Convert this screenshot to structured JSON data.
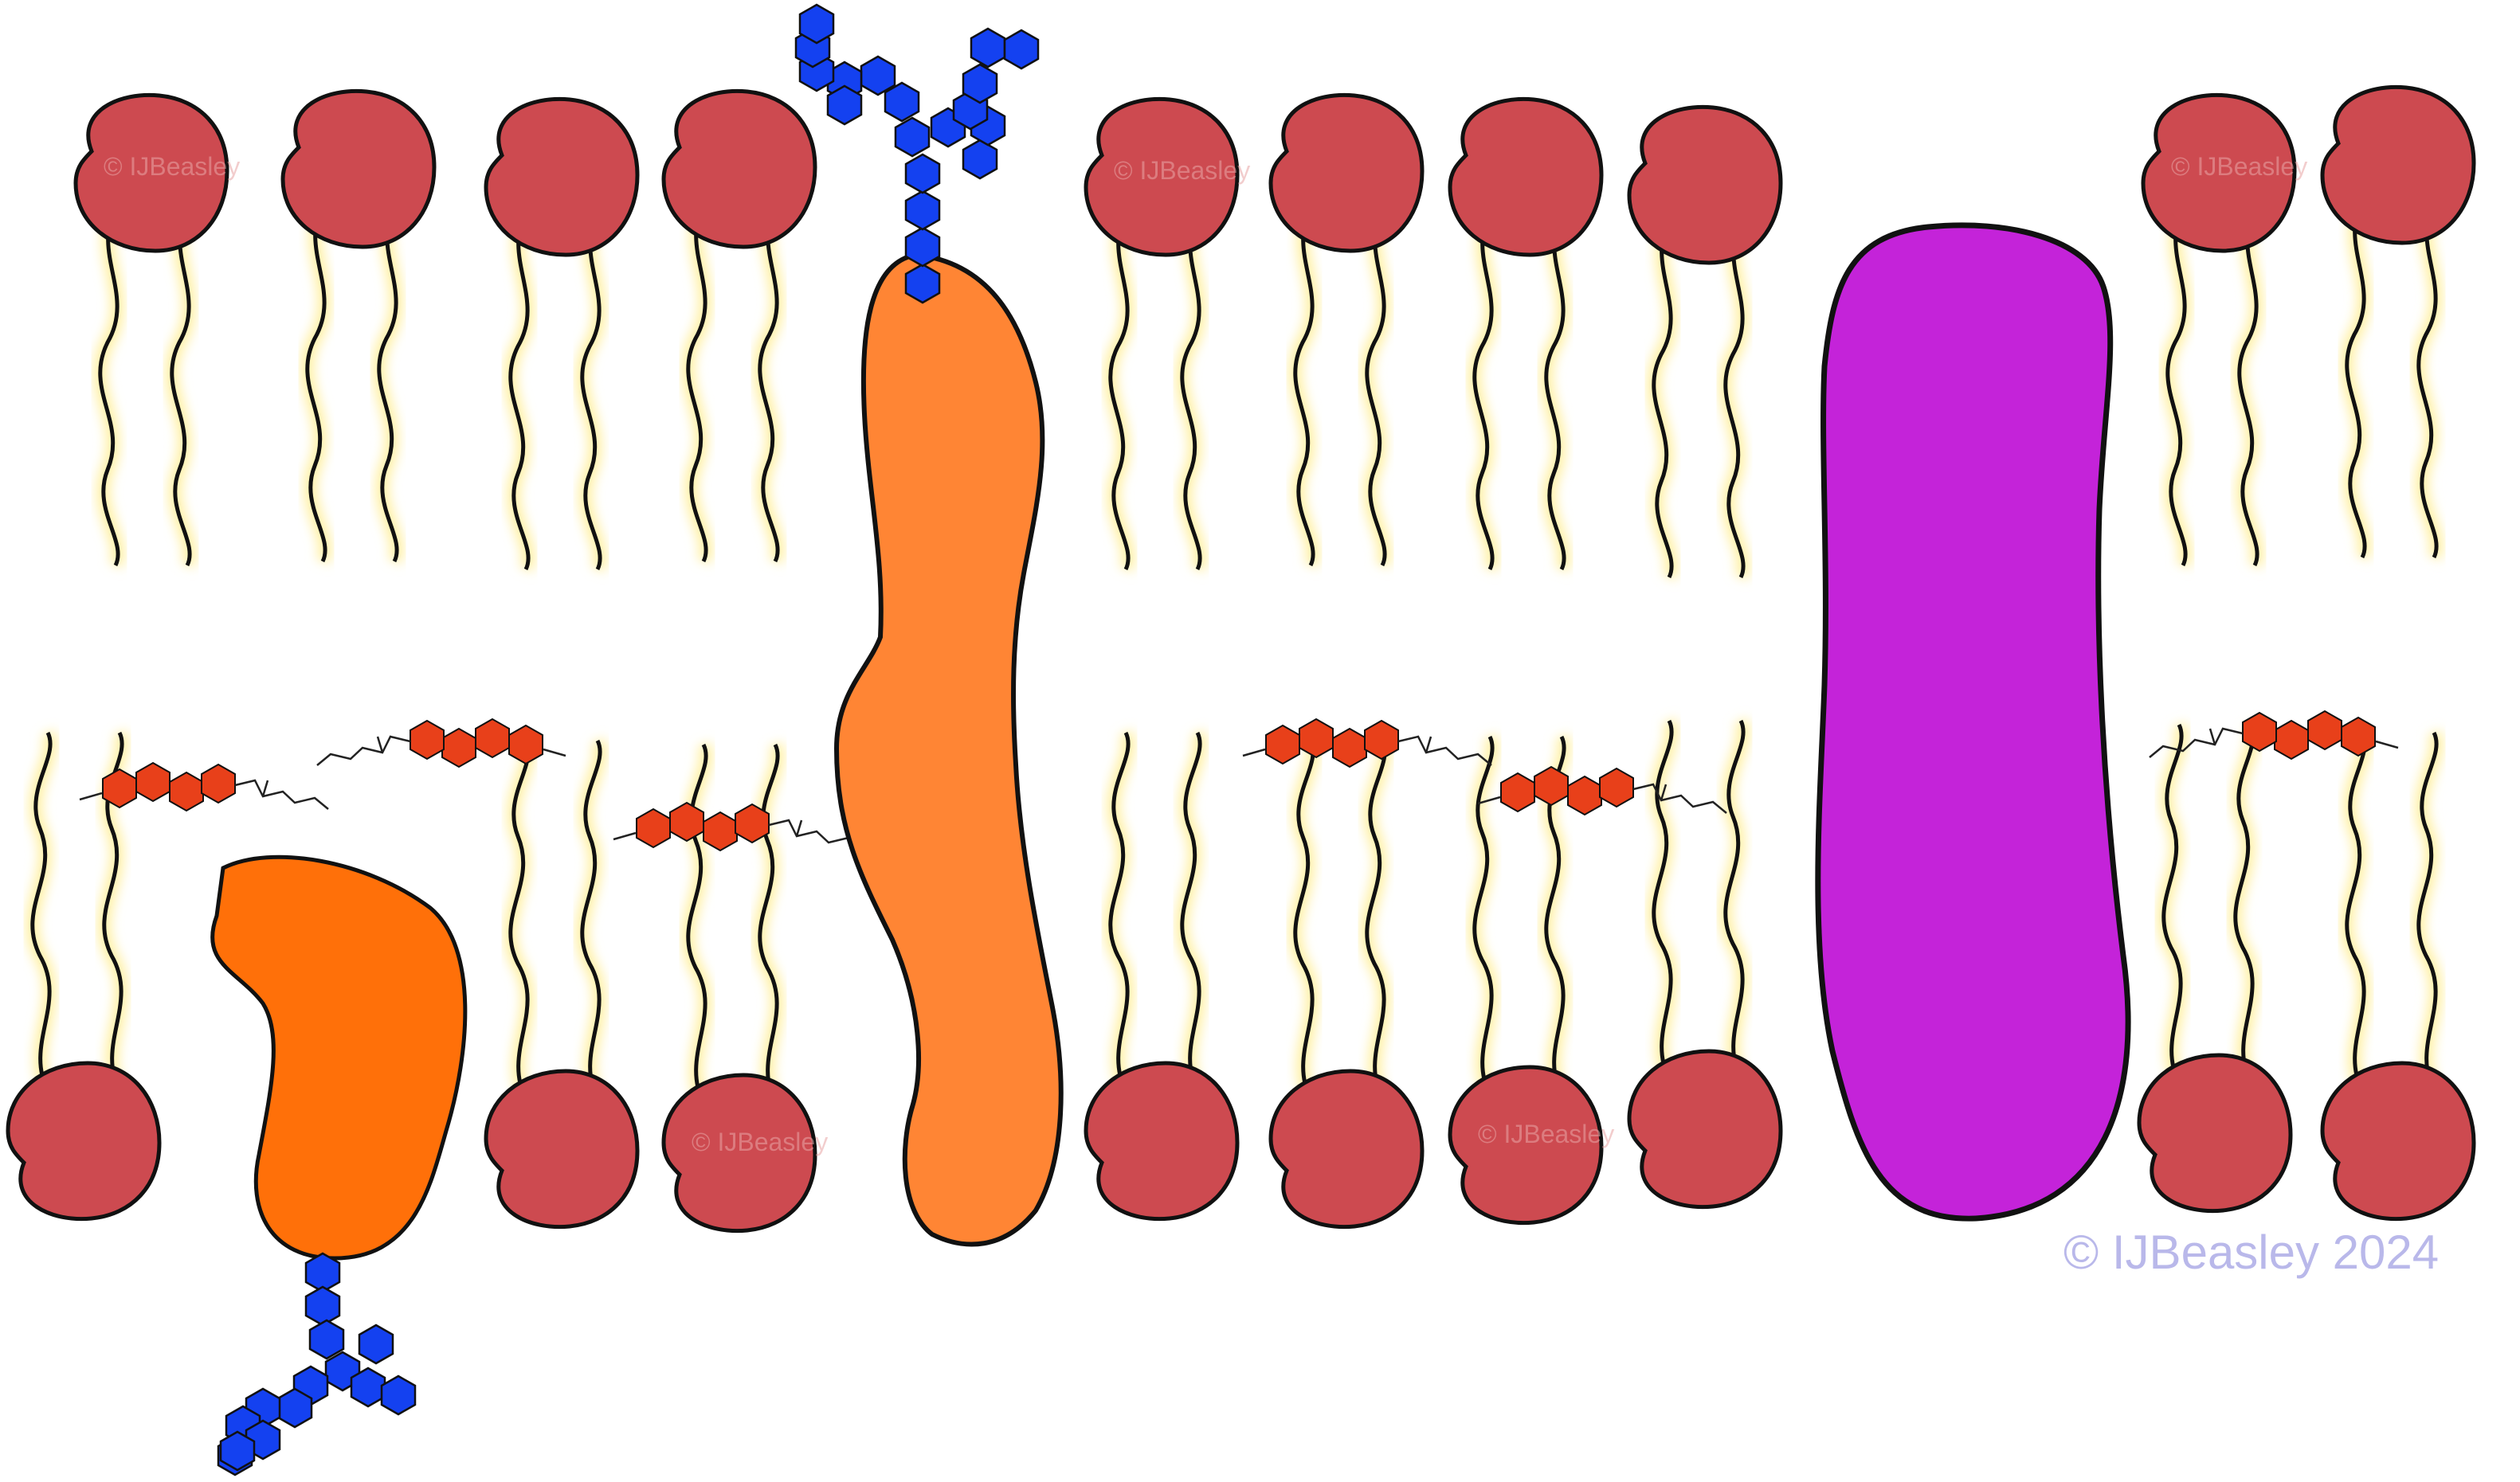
{
  "copyright": "© IJBeasley 2024",
  "watermark_lines": [
    "© IJBeasley",
    "2024"
  ],
  "colors": {
    "phospholipid_head": "#cd4a50",
    "fatty_acid_tail": "#111111",
    "tail_glow": "#fff1a8",
    "cholesterol_ring": "#e8401a",
    "glycan": "#1441f0",
    "peripheral_protein": "#ff7009",
    "integral_protein": "#ff8534",
    "channel_protein": "#c423d9",
    "copyright_text": "#b9b8ea"
  },
  "icons": [
    "phospholipid-icon",
    "cholesterol-icon",
    "glycan-chain-icon",
    "peripheral-protein-icon",
    "integral-protein-icon",
    "channel-protein-icon"
  ]
}
